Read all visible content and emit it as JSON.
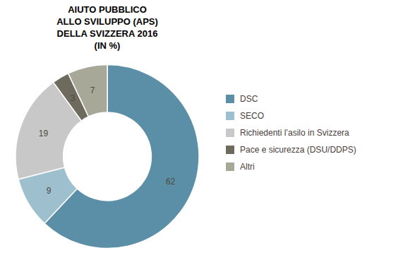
{
  "chart_data": {
    "type": "donut",
    "title": "AIUTO PUBBLICO\nALLO SVILUPPO (APS)\nDELLA SVIZZERA 2016\n(IN %)",
    "categories": [
      "DSC",
      "SECO",
      "Richiedenti l’asilo in Svizzera",
      "Pace e sicurezza (DSU/DDPS)",
      "Altri"
    ],
    "values": [
      62,
      9,
      19,
      3,
      7
    ],
    "colors": [
      "#5b8fa8",
      "#9dbfce",
      "#c8c8c8",
      "#6e6b5e",
      "#a8a898"
    ],
    "data_labels": true,
    "legend": "right"
  }
}
